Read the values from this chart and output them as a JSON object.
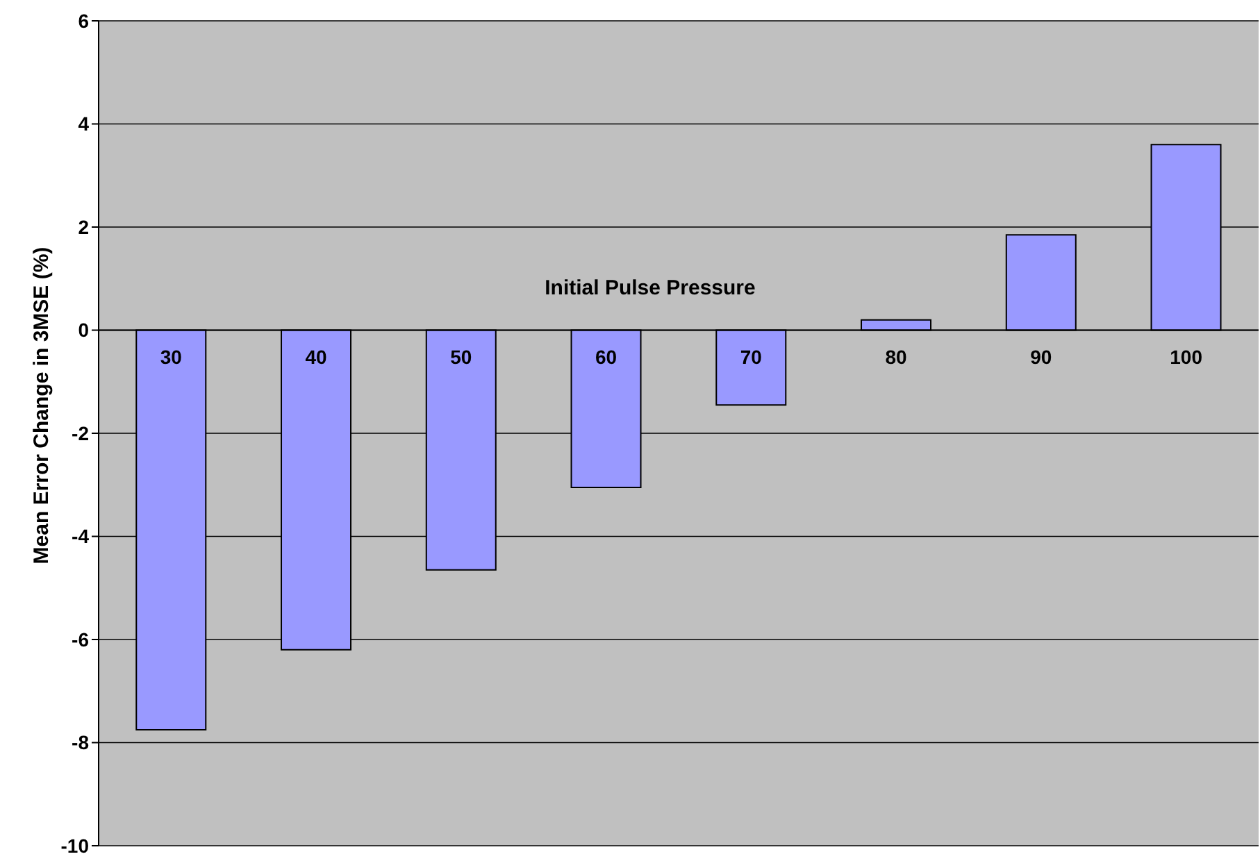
{
  "chart_data": {
    "type": "bar",
    "xlabel": "Initial Pulse Pressure",
    "ylabel": "Mean Error Change in 3MSE (%)",
    "categories": [
      "30",
      "40",
      "50",
      "60",
      "70",
      "80",
      "90",
      "100"
    ],
    "values": [
      -7.75,
      -6.2,
      -4.65,
      -3.05,
      -1.45,
      0.2,
      1.85,
      3.6
    ],
    "color": "#9999ff",
    "ylim": [
      -10,
      6
    ],
    "yticks": [
      -10,
      -8,
      -6,
      -4,
      -2,
      0,
      2,
      4,
      6
    ],
    "grid": "y"
  }
}
